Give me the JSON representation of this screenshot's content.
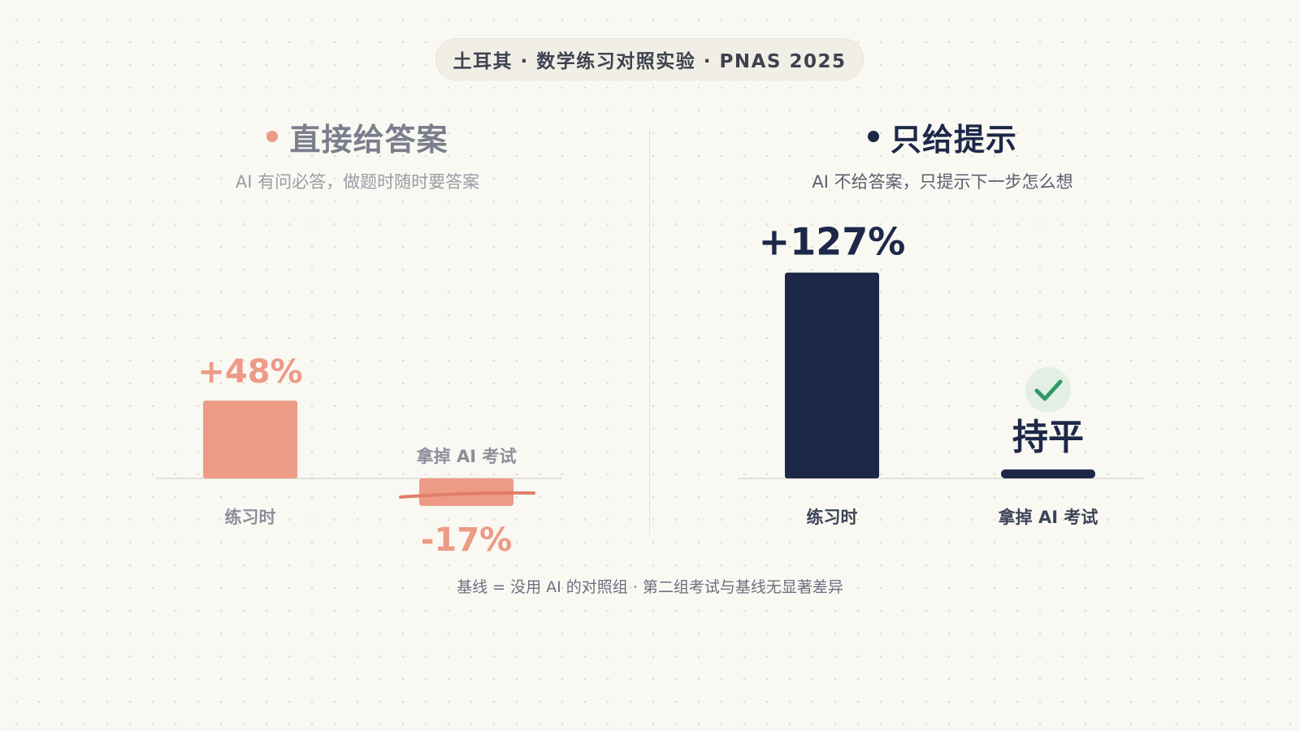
{
  "header": {
    "badge": "土耳其 · 数学练习对照实验 · PNAS 2025"
  },
  "panels": [
    {
      "title": "直接给答案",
      "subtitle": "AI 有问必答，做题时随时要答案",
      "color": "#ed9a86",
      "text_color": "#7a7e8d"
    },
    {
      "title": "只给提示",
      "subtitle": "AI 不给答案，只提示下一步怎么想",
      "color": "#1d2849",
      "text_color": "#1d2849"
    }
  ],
  "chart_data": [
    {
      "type": "bar",
      "title": "直接给答案",
      "subtitle": "AI 有问必答，做题时随时要答案",
      "categories": [
        "练习时",
        "拿掉 AI 考试"
      ],
      "values": [
        48,
        -17
      ],
      "data_labels": [
        "+48%",
        "-17%"
      ],
      "ylim": [
        -20,
        130
      ],
      "color": "#ed9a86"
    },
    {
      "type": "bar",
      "title": "只给提示",
      "subtitle": "AI 不给答案，只提示下一步怎么想",
      "categories": [
        "练习时",
        "拿掉 AI 考试"
      ],
      "values": [
        127,
        0
      ],
      "data_labels": [
        "+127%",
        "持平"
      ],
      "ylim": [
        -20,
        130
      ],
      "color": "#1d2849",
      "check_color": "#2f9a63"
    }
  ],
  "footnote": "基线 = 没用 AI 的对照组 · 第二组考试与基线无显著差异"
}
